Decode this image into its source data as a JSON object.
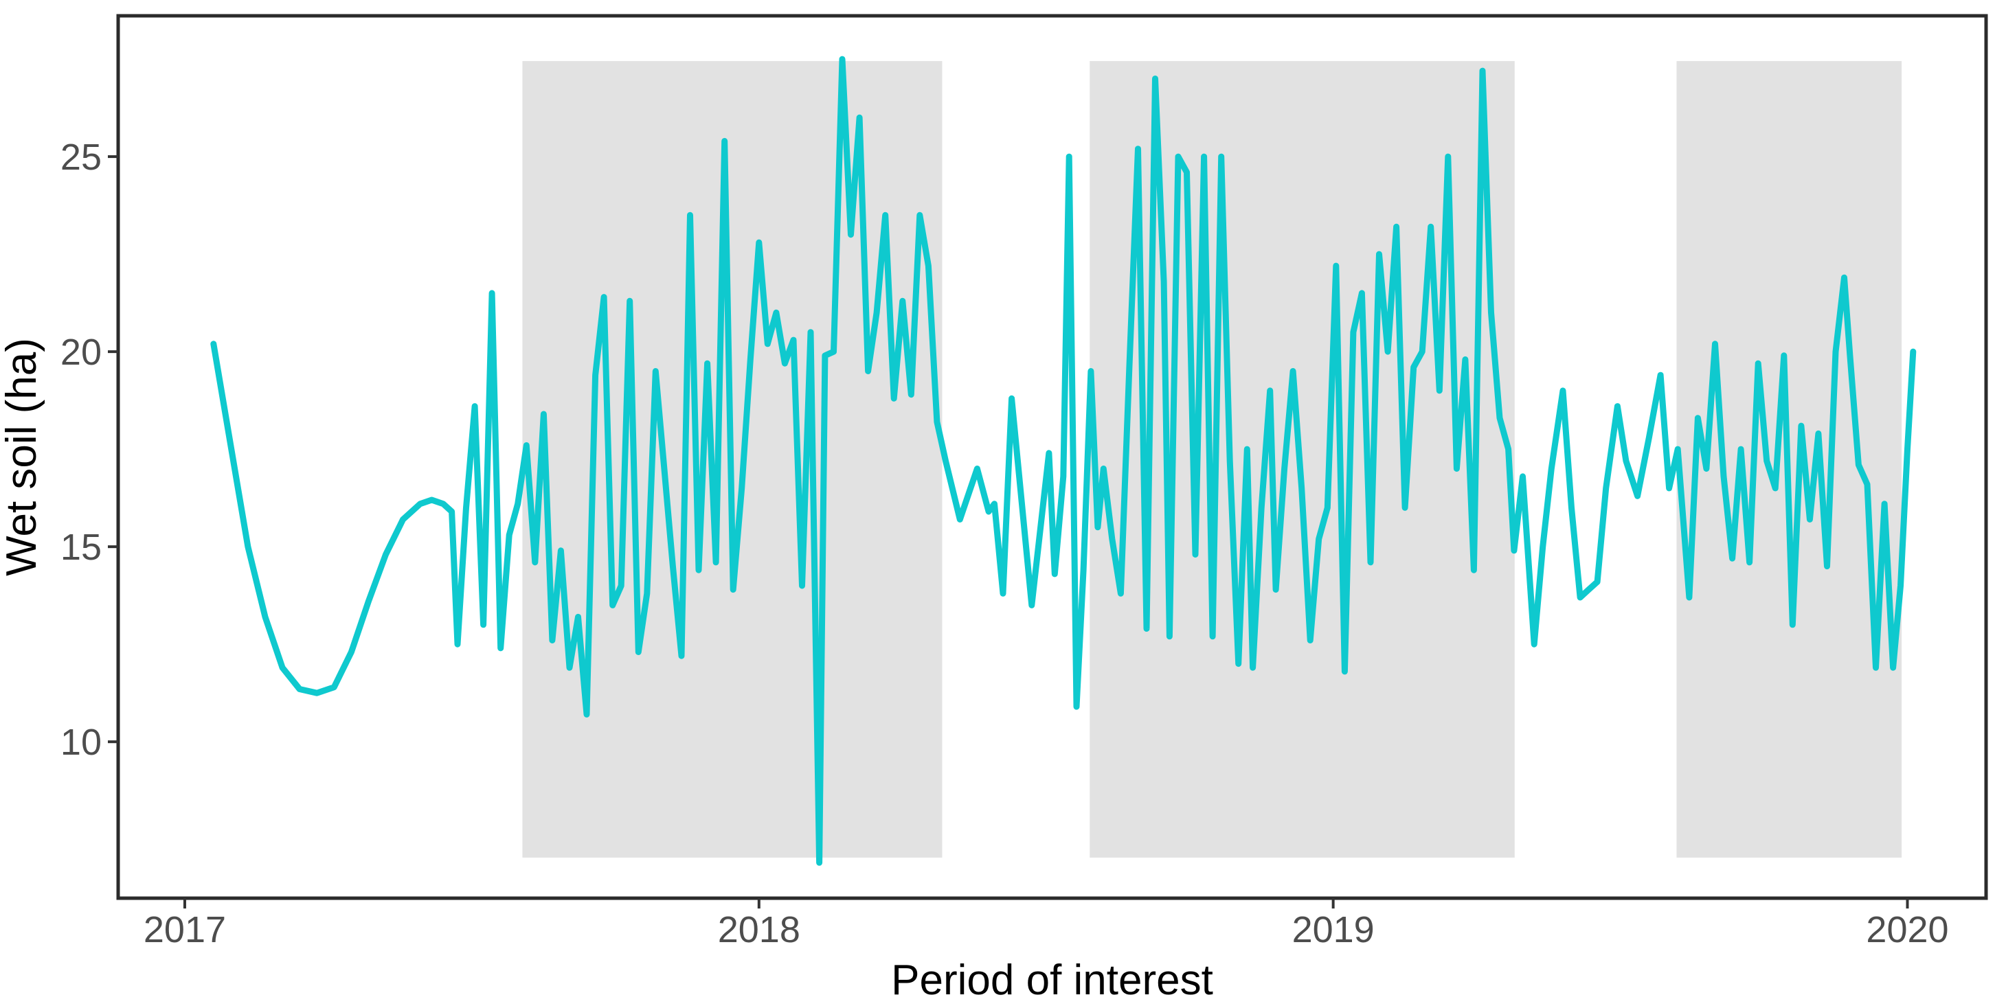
{
  "chart_data": {
    "type": "line",
    "title": "",
    "xlabel": "Period of interest",
    "ylabel": "Wet soil (ha)",
    "grid": "off",
    "legend": "none",
    "x_range": [
      2016.884,
      2020.137
    ],
    "y_range": [
      5.99,
      28.61
    ],
    "x_ticks": [
      {
        "value": 2017,
        "label": "2017"
      },
      {
        "value": 2018,
        "label": "2018"
      },
      {
        "value": 2019,
        "label": "2019"
      },
      {
        "value": 2020,
        "label": "2020"
      }
    ],
    "y_ticks": [
      {
        "value": 10,
        "label": "10"
      },
      {
        "value": 15,
        "label": "15"
      },
      {
        "value": 20,
        "label": "20"
      },
      {
        "value": 25,
        "label": "25"
      }
    ],
    "shaded_periods": {
      "color": "#E2E2E2",
      "y_span": [
        7.03,
        27.45
      ],
      "intervals": [
        [
          2017.588,
          2018.319
        ],
        [
          2018.576,
          2019.316
        ],
        [
          2019.598,
          2019.99
        ]
      ]
    },
    "series": [
      {
        "name": "wet-soil",
        "color": "#0FC9CE",
        "points": [
          [
            2017.05,
            20.2
          ],
          [
            2017.08,
            17.6
          ],
          [
            2017.11,
            15.0
          ],
          [
            2017.14,
            13.2
          ],
          [
            2017.17,
            11.9
          ],
          [
            2017.2,
            11.35
          ],
          [
            2017.23,
            11.25
          ],
          [
            2017.26,
            11.4
          ],
          [
            2017.29,
            12.3
          ],
          [
            2017.32,
            13.6
          ],
          [
            2017.35,
            14.8
          ],
          [
            2017.38,
            15.7
          ],
          [
            2017.41,
            16.1
          ],
          [
            2017.43,
            16.2
          ],
          [
            2017.45,
            16.1
          ],
          [
            2017.465,
            15.9
          ],
          [
            2017.475,
            12.5
          ],
          [
            2017.49,
            16.0
          ],
          [
            2017.505,
            18.6
          ],
          [
            2017.52,
            13.0
          ],
          [
            2017.535,
            21.5
          ],
          [
            2017.55,
            12.4
          ],
          [
            2017.565,
            15.3
          ],
          [
            2017.58,
            16.1
          ],
          [
            2017.595,
            17.6
          ],
          [
            2017.61,
            14.6
          ],
          [
            2017.625,
            18.4
          ],
          [
            2017.64,
            12.6
          ],
          [
            2017.655,
            14.9
          ],
          [
            2017.67,
            11.9
          ],
          [
            2017.685,
            13.2
          ],
          [
            2017.7,
            10.7
          ],
          [
            2017.715,
            19.4
          ],
          [
            2017.73,
            21.4
          ],
          [
            2017.745,
            13.5
          ],
          [
            2017.76,
            14.0
          ],
          [
            2017.775,
            21.3
          ],
          [
            2017.79,
            12.3
          ],
          [
            2017.805,
            13.8
          ],
          [
            2017.82,
            19.5
          ],
          [
            2017.835,
            17.0
          ],
          [
            2017.85,
            14.5
          ],
          [
            2017.865,
            12.2
          ],
          [
            2017.88,
            23.5
          ],
          [
            2017.895,
            14.4
          ],
          [
            2017.91,
            19.7
          ],
          [
            2017.925,
            14.6
          ],
          [
            2017.94,
            25.4
          ],
          [
            2017.955,
            13.9
          ],
          [
            2017.97,
            16.5
          ],
          [
            2017.985,
            19.8
          ],
          [
            2018.0,
            22.8
          ],
          [
            2018.015,
            20.2
          ],
          [
            2018.03,
            21.0
          ],
          [
            2018.045,
            19.7
          ],
          [
            2018.06,
            20.3
          ],
          [
            2018.075,
            14.0
          ],
          [
            2018.09,
            20.5
          ],
          [
            2018.105,
            6.9
          ],
          [
            2018.115,
            19.9
          ],
          [
            2018.13,
            20.0
          ],
          [
            2018.145,
            27.5
          ],
          [
            2018.16,
            23.0
          ],
          [
            2018.175,
            26.0
          ],
          [
            2018.19,
            19.5
          ],
          [
            2018.205,
            21.0
          ],
          [
            2018.22,
            23.5
          ],
          [
            2018.235,
            18.8
          ],
          [
            2018.25,
            21.3
          ],
          [
            2018.265,
            18.9
          ],
          [
            2018.28,
            23.5
          ],
          [
            2018.295,
            22.2
          ],
          [
            2018.31,
            18.2
          ],
          [
            2018.325,
            17.2
          ],
          [
            2018.35,
            15.7
          ],
          [
            2018.38,
            17.0
          ],
          [
            2018.4,
            15.9
          ],
          [
            2018.41,
            16.1
          ],
          [
            2018.425,
            13.8
          ],
          [
            2018.44,
            18.8
          ],
          [
            2018.475,
            13.5
          ],
          [
            2018.505,
            17.4
          ],
          [
            2018.515,
            14.3
          ],
          [
            2018.53,
            16.8
          ],
          [
            2018.54,
            25.0
          ],
          [
            2018.553,
            10.9
          ],
          [
            2018.565,
            14.4
          ],
          [
            2018.578,
            19.5
          ],
          [
            2018.59,
            15.5
          ],
          [
            2018.6,
            17.0
          ],
          [
            2018.615,
            15.2
          ],
          [
            2018.63,
            13.8
          ],
          [
            2018.645,
            19.6
          ],
          [
            2018.66,
            25.2
          ],
          [
            2018.675,
            12.9
          ],
          [
            2018.69,
            27.0
          ],
          [
            2018.705,
            21.8
          ],
          [
            2018.715,
            12.7
          ],
          [
            2018.73,
            25.0
          ],
          [
            2018.745,
            24.6
          ],
          [
            2018.76,
            14.8
          ],
          [
            2018.775,
            25.0
          ],
          [
            2018.79,
            12.7
          ],
          [
            2018.805,
            25.0
          ],
          [
            2018.82,
            17.2
          ],
          [
            2018.835,
            12.0
          ],
          [
            2018.85,
            17.5
          ],
          [
            2018.86,
            11.9
          ],
          [
            2018.875,
            16.0
          ],
          [
            2018.89,
            19.0
          ],
          [
            2018.9,
            13.9
          ],
          [
            2018.915,
            17.0
          ],
          [
            2018.93,
            19.5
          ],
          [
            2018.945,
            16.5
          ],
          [
            2018.96,
            12.6
          ],
          [
            2018.975,
            15.2
          ],
          [
            2018.99,
            16.0
          ],
          [
            2019.005,
            22.2
          ],
          [
            2019.02,
            11.8
          ],
          [
            2019.035,
            20.5
          ],
          [
            2019.05,
            21.5
          ],
          [
            2019.065,
            14.6
          ],
          [
            2019.08,
            22.5
          ],
          [
            2019.095,
            20.0
          ],
          [
            2019.11,
            23.2
          ],
          [
            2019.125,
            16.0
          ],
          [
            2019.14,
            19.6
          ],
          [
            2019.155,
            20.0
          ],
          [
            2019.17,
            23.2
          ],
          [
            2019.185,
            19.0
          ],
          [
            2019.2,
            25.0
          ],
          [
            2019.215,
            17.0
          ],
          [
            2019.23,
            19.8
          ],
          [
            2019.245,
            14.4
          ],
          [
            2019.26,
            27.2
          ],
          [
            2019.275,
            21.0
          ],
          [
            2019.29,
            18.3
          ],
          [
            2019.305,
            17.5
          ],
          [
            2019.315,
            14.9
          ],
          [
            2019.33,
            16.8
          ],
          [
            2019.35,
            12.5
          ],
          [
            2019.365,
            15.0
          ],
          [
            2019.38,
            17.0
          ],
          [
            2019.4,
            19.0
          ],
          [
            2019.415,
            16.0
          ],
          [
            2019.43,
            13.7
          ],
          [
            2019.445,
            13.9
          ],
          [
            2019.46,
            14.1
          ],
          [
            2019.475,
            16.5
          ],
          [
            2019.495,
            18.6
          ],
          [
            2019.51,
            17.2
          ],
          [
            2019.53,
            16.3
          ],
          [
            2019.55,
            17.8
          ],
          [
            2019.57,
            19.4
          ],
          [
            2019.585,
            16.5
          ],
          [
            2019.6,
            17.5
          ],
          [
            2019.62,
            13.7
          ],
          [
            2019.635,
            18.3
          ],
          [
            2019.65,
            17.0
          ],
          [
            2019.665,
            20.2
          ],
          [
            2019.68,
            16.8
          ],
          [
            2019.695,
            14.7
          ],
          [
            2019.71,
            17.5
          ],
          [
            2019.725,
            14.6
          ],
          [
            2019.74,
            19.7
          ],
          [
            2019.755,
            17.2
          ],
          [
            2019.77,
            16.5
          ],
          [
            2019.785,
            19.9
          ],
          [
            2019.8,
            13.0
          ],
          [
            2019.815,
            18.1
          ],
          [
            2019.83,
            15.7
          ],
          [
            2019.845,
            17.9
          ],
          [
            2019.86,
            14.5
          ],
          [
            2019.875,
            20.0
          ],
          [
            2019.89,
            21.9
          ],
          [
            2019.9,
            19.9
          ],
          [
            2019.915,
            17.1
          ],
          [
            2019.93,
            16.6
          ],
          [
            2019.945,
            11.9
          ],
          [
            2019.96,
            16.1
          ],
          [
            2019.975,
            11.9
          ],
          [
            2019.988,
            14.0
          ],
          [
            2020.0,
            17.5
          ],
          [
            2020.01,
            20.0
          ]
        ]
      }
    ]
  },
  "colors": {
    "background": "#FFFFFF",
    "panel_border": "#2B2B2B",
    "tick_mark": "#333333",
    "tick_label": "#4D4D4D",
    "axis_title": "#000000"
  }
}
